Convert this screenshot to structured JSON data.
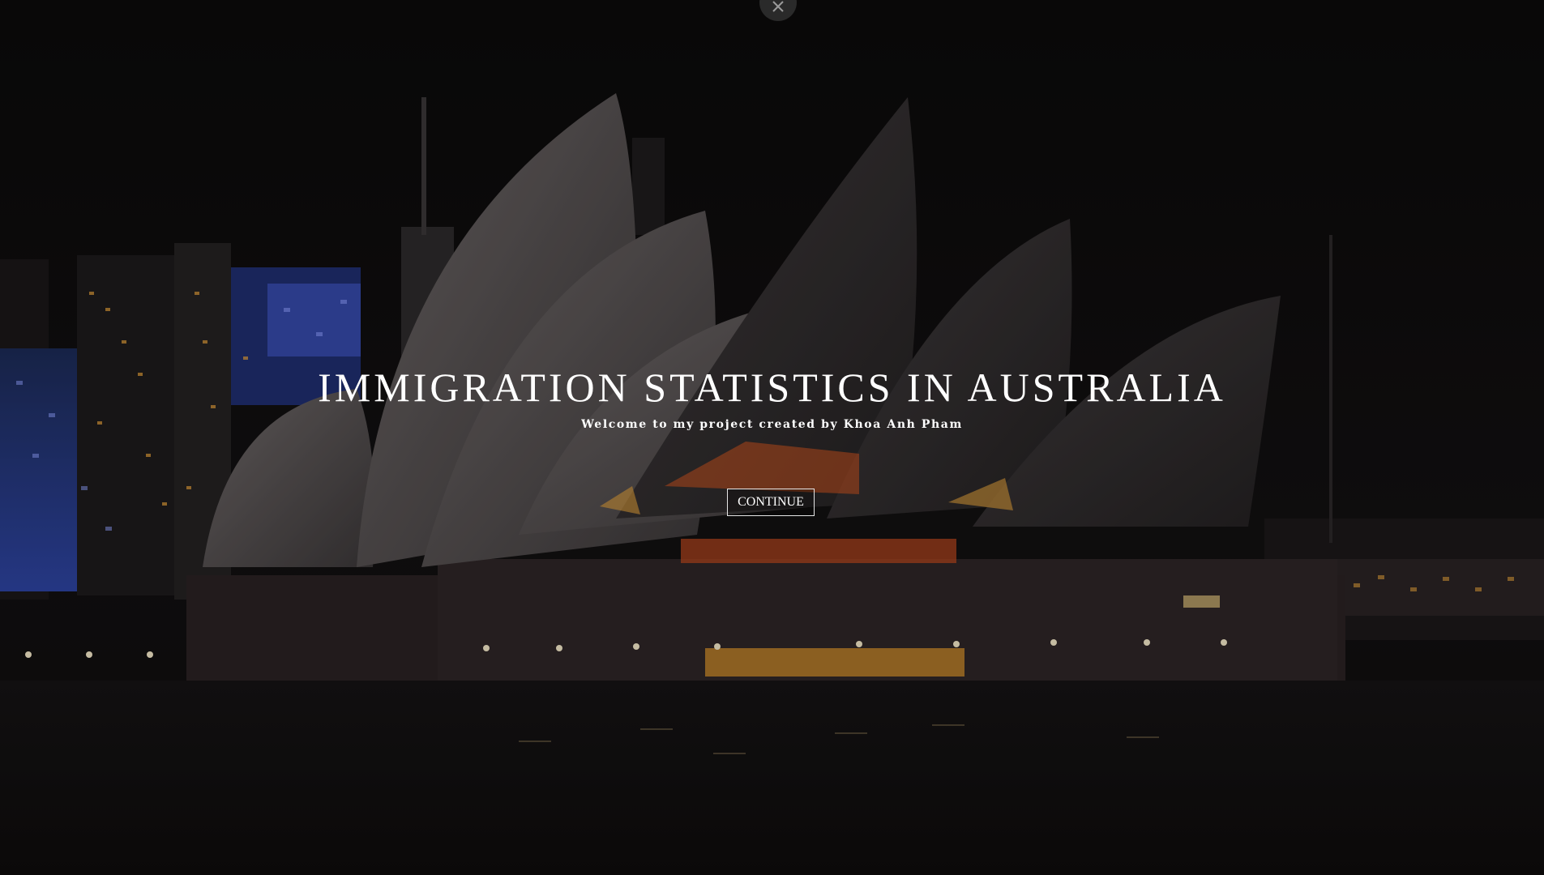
{
  "hero": {
    "title": "IMMIGRATION STATISTICS IN AUSTRALIA",
    "subtitle": "Welcome to my project created by Khoa Anh Pham",
    "continue_label": "CONTINUE"
  },
  "icons": {
    "close": "close-icon"
  },
  "colors": {
    "sky": "#0d0c0c",
    "opera_house_shell": "#5a5556",
    "city_blue": "#2a3f8c",
    "window_light": "#e8a23a",
    "water": "#141213",
    "text": "#ffffff"
  }
}
